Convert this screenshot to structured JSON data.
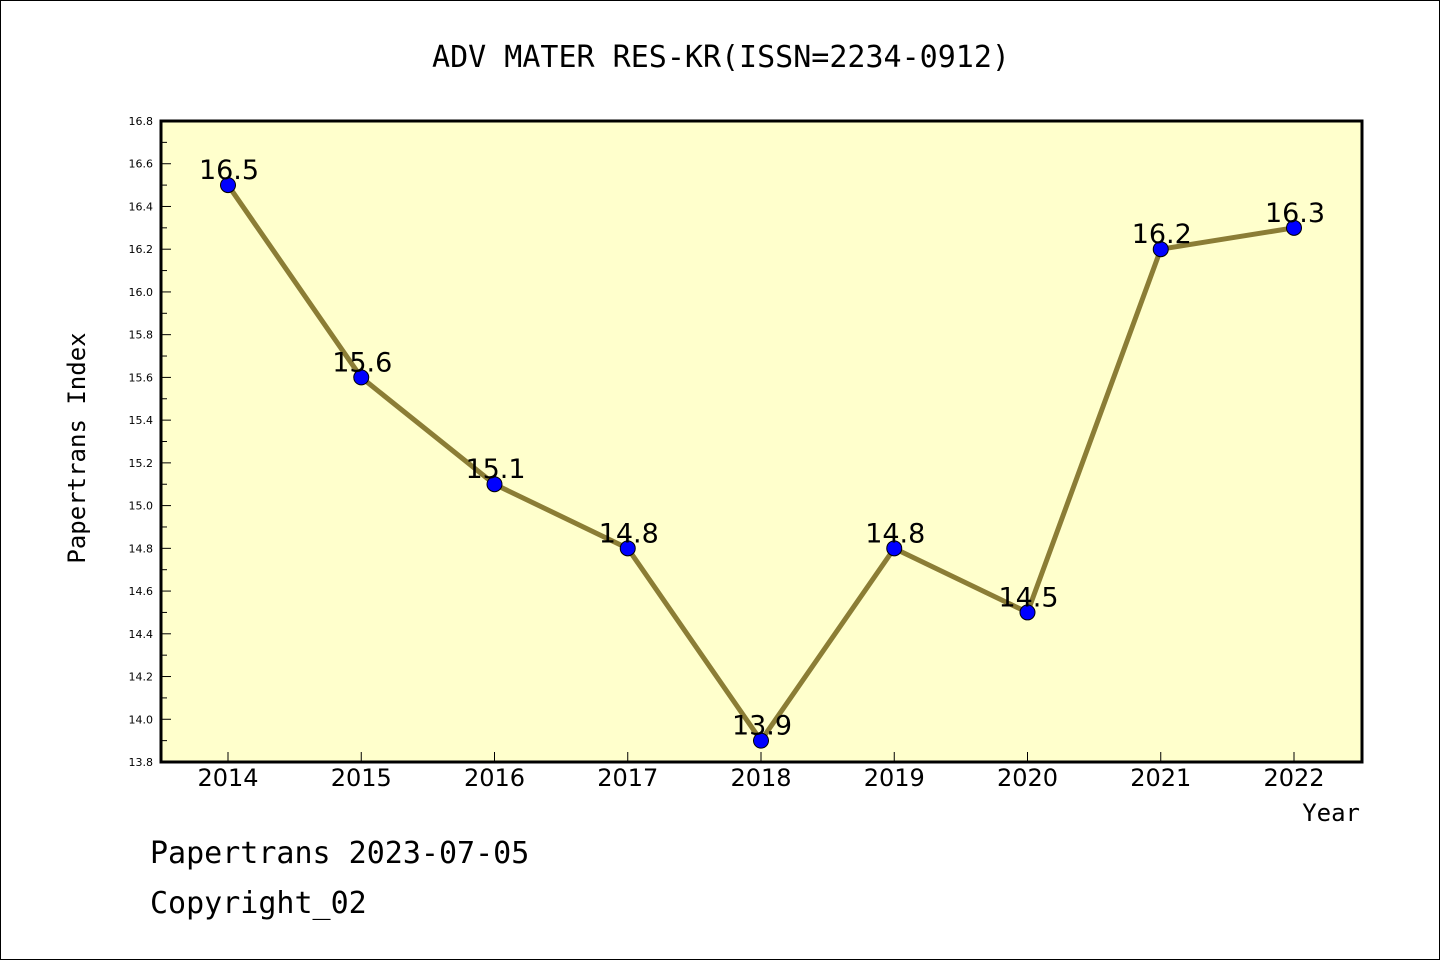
{
  "chart_data": {
    "type": "line",
    "title": "ADV MATER RES-KR(ISSN=2234-0912)",
    "xlabel": "Year",
    "ylabel": "Papertrans Index",
    "categories": [
      "2014",
      "2015",
      "2016",
      "2017",
      "2018",
      "2019",
      "2020",
      "2021",
      "2022"
    ],
    "series": [
      {
        "values": [
          16.5,
          15.6,
          15.1,
          14.8,
          13.9,
          14.8,
          14.5,
          16.2,
          16.3
        ]
      }
    ],
    "data_labels": [
      "16.5",
      "15.6",
      "15.1",
      "14.8",
      "13.9",
      "14.8",
      "14.5",
      "16.2",
      "16.3"
    ],
    "ylim": [
      13.8,
      16.8
    ],
    "yticks": [
      "13.8",
      "14.0",
      "14.2",
      "14.4",
      "14.6",
      "14.8",
      "15.0",
      "15.2",
      "15.4",
      "15.6",
      "15.8",
      "16.0",
      "16.2",
      "16.4",
      "16.6",
      "16.8"
    ],
    "grid": false,
    "legend": "none",
    "colors": {
      "plot_background": "#ffffcc",
      "line": "#8b7d35",
      "marker": "#0000ff"
    }
  },
  "footer": {
    "source_line": "Papertrans 2023-07-05",
    "copyright_line": "Copyright_02"
  }
}
